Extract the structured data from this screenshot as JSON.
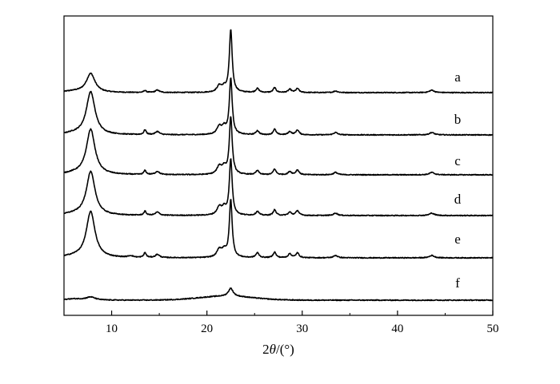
{
  "chart_data": {
    "type": "line",
    "xlabel": "2θ/(°)",
    "xlabel_parts": {
      "prefix": "2",
      "symbol": "θ",
      "unit": "/(°)"
    },
    "xlim": [
      5,
      50
    ],
    "xticks": [
      10,
      20,
      30,
      40,
      50
    ],
    "ylabel": "",
    "grid": false,
    "legend": "inline-right",
    "series": [
      {
        "name": "a",
        "baseline": 0.0,
        "background": 0.0,
        "peaks": [
          [
            7.8,
            24,
            0.55
          ],
          [
            13.5,
            2.5,
            0.15
          ],
          [
            14.8,
            3,
            0.25
          ],
          [
            21.3,
            8,
            0.3
          ],
          [
            21.8,
            5,
            0.25
          ],
          [
            22.5,
            78,
            0.18
          ],
          [
            25.3,
            5,
            0.2
          ],
          [
            27.1,
            6,
            0.18
          ],
          [
            28.7,
            4,
            0.2
          ],
          [
            29.5,
            5,
            0.2
          ],
          [
            33.5,
            2,
            0.25
          ],
          [
            43.6,
            3,
            0.3
          ]
        ]
      },
      {
        "name": "b",
        "baseline": 0.0,
        "background": 0.0,
        "peaks": [
          [
            7.8,
            54,
            0.55
          ],
          [
            13.5,
            6,
            0.15
          ],
          [
            14.8,
            4,
            0.25
          ],
          [
            21.3,
            10,
            0.3
          ],
          [
            21.8,
            8,
            0.25
          ],
          [
            22.5,
            70,
            0.18
          ],
          [
            25.3,
            5,
            0.2
          ],
          [
            27.1,
            7,
            0.18
          ],
          [
            28.7,
            4,
            0.2
          ],
          [
            29.5,
            6,
            0.2
          ],
          [
            33.5,
            3,
            0.25
          ],
          [
            43.6,
            3,
            0.3
          ]
        ]
      },
      {
        "name": "c",
        "baseline": 0.0,
        "background": 0.0,
        "peaks": [
          [
            7.8,
            57,
            0.55
          ],
          [
            13.5,
            5,
            0.15
          ],
          [
            14.8,
            4,
            0.25
          ],
          [
            21.3,
            10,
            0.3
          ],
          [
            21.8,
            8,
            0.25
          ],
          [
            22.5,
            72,
            0.18
          ],
          [
            25.3,
            5,
            0.2
          ],
          [
            27.1,
            7,
            0.18
          ],
          [
            28.7,
            4,
            0.2
          ],
          [
            29.5,
            6,
            0.2
          ],
          [
            33.5,
            3,
            0.25
          ],
          [
            43.6,
            3,
            0.3
          ]
        ]
      },
      {
        "name": "d",
        "baseline": 0.0,
        "background": 0.0,
        "peaks": [
          [
            7.8,
            55,
            0.55
          ],
          [
            13.5,
            5,
            0.15
          ],
          [
            14.8,
            4,
            0.25
          ],
          [
            21.3,
            10,
            0.3
          ],
          [
            21.8,
            8,
            0.25
          ],
          [
            22.5,
            70,
            0.18
          ],
          [
            25.3,
            5,
            0.2
          ],
          [
            27.1,
            7,
            0.18
          ],
          [
            28.7,
            4,
            0.2
          ],
          [
            29.5,
            6,
            0.2
          ],
          [
            33.5,
            3,
            0.25
          ],
          [
            43.6,
            3,
            0.3
          ]
        ]
      },
      {
        "name": "e",
        "baseline": 0.0,
        "background": 0.0,
        "peaks": [
          [
            7.8,
            58,
            0.55
          ],
          [
            12.0,
            2,
            0.3
          ],
          [
            13.5,
            6,
            0.15
          ],
          [
            14.8,
            4,
            0.25
          ],
          [
            21.3,
            10,
            0.3
          ],
          [
            21.8,
            8,
            0.25
          ],
          [
            22.5,
            72,
            0.18
          ],
          [
            25.3,
            6,
            0.2
          ],
          [
            27.1,
            7,
            0.18
          ],
          [
            28.7,
            5,
            0.2
          ],
          [
            29.5,
            6,
            0.2
          ],
          [
            33.5,
            3,
            0.25
          ],
          [
            43.6,
            3,
            0.3
          ]
        ]
      },
      {
        "name": "f",
        "baseline": 0.0,
        "background": 5.0,
        "peaks": [
          [
            7.8,
            4,
            0.6
          ],
          [
            22.5,
            10,
            0.3
          ]
        ]
      }
    ]
  }
}
